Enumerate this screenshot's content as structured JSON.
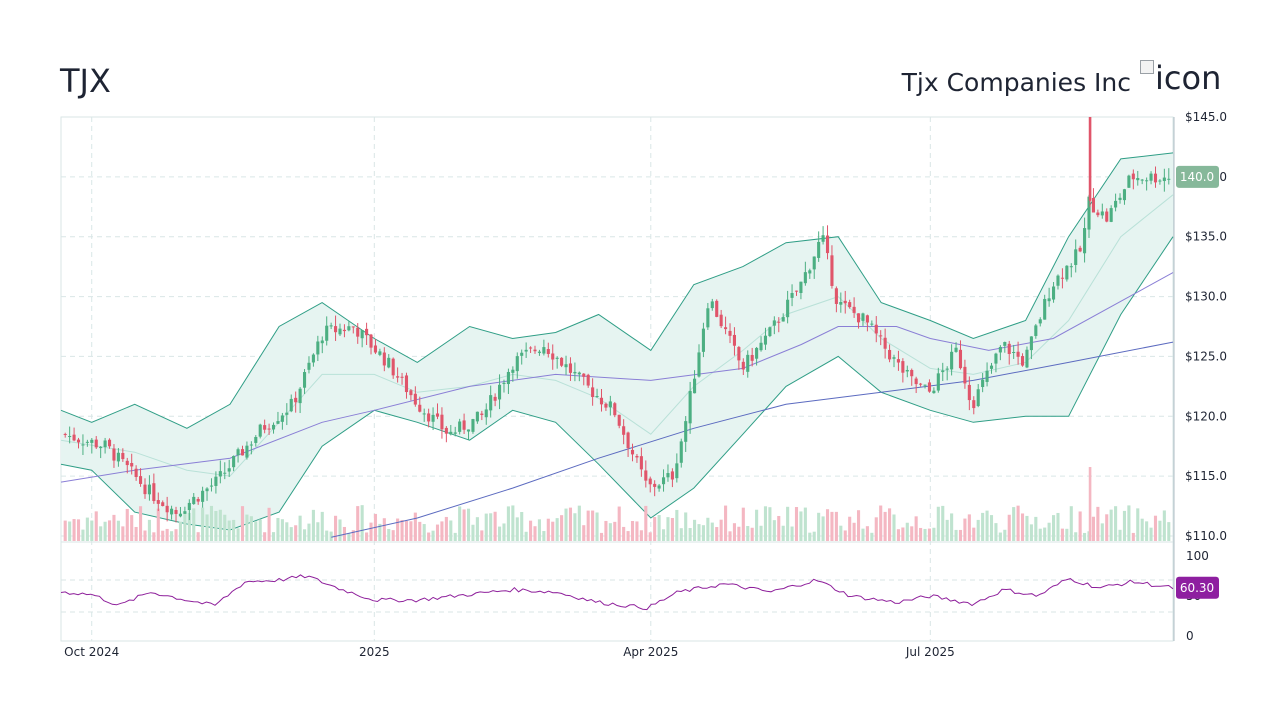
{
  "header": {
    "ticker": "TJX",
    "company": "Tjx Companies Inc",
    "logo_alt": "icon",
    "logo_icon": "broken-image-icon"
  },
  "colors": {
    "up": "#4caf82",
    "down": "#e0556a",
    "up_vol": "#bfe3cf",
    "down_vol": "#f4b7c2",
    "band_fill": "#e6f4f1",
    "band_line": "#2f9e86",
    "sma_mid": "#b9e1d8",
    "sma_200": "#5c6bc0",
    "sma_100": "#8a7fd6",
    "rsi_line": "#8e1f9b",
    "rsi_badge": "#8e1fa0",
    "price_badge": "#86b89a",
    "grid": "#d9e6e6",
    "axis_text": "#1e2433"
  },
  "chart_data": [
    {
      "type": "candlestick",
      "title": "TJX",
      "y_axis_ticks": [
        "$110.0",
        "$115.0",
        "$120.0",
        "$125.0",
        "$130.0",
        "$135.0",
        "$140.0",
        "$145.0"
      ],
      "ylim": [
        110,
        145
      ],
      "x_axis_ticks": [
        "Oct 2024",
        "2025",
        "Apr 2025",
        "Jul 2025"
      ],
      "x_range": [
        "2024-09-21",
        "2025-09-18"
      ],
      "last_price_label": "140.0",
      "grid": true,
      "series": [
        {
          "kind": "close_path",
          "x": [
            "2024-09-21",
            "2024-10-05",
            "2024-10-20",
            "2024-10-28",
            "2024-11-10",
            "2024-11-20",
            "2024-11-25",
            "2024-12-05",
            "2024-12-15",
            "2024-12-25",
            "2025-01-05",
            "2025-01-15",
            "2025-01-25",
            "2025-02-05",
            "2025-02-15",
            "2025-02-25",
            "2025-03-05",
            "2025-03-11",
            "2025-03-20",
            "2025-03-31",
            "2025-04-08",
            "2025-04-12",
            "2025-04-20",
            "2025-05-01",
            "2025-05-10",
            "2025-05-20",
            "2025-05-27",
            "2025-06-01",
            "2025-06-10",
            "2025-06-20",
            "2025-06-25",
            "2025-07-01",
            "2025-07-10",
            "2025-07-15",
            "2025-07-25",
            "2025-08-01",
            "2025-08-10",
            "2025-08-20",
            "2025-08-22",
            "2025-08-28",
            "2025-09-05",
            "2025-09-18"
          ],
          "values": [
            118.5,
            117.5,
            113.5,
            112.0,
            114.5,
            117.5,
            119.0,
            121.0,
            127.0,
            127.5,
            124.5,
            121.0,
            118.5,
            120.0,
            124.5,
            126.0,
            124.0,
            122.5,
            120.5,
            114.0,
            115.0,
            119.0,
            130.0,
            124.0,
            127.0,
            131.0,
            135.0,
            129.5,
            128.0,
            124.5,
            123.0,
            122.0,
            125.5,
            121.0,
            126.0,
            124.5,
            131.0,
            134.0,
            138.0,
            136.5,
            140.0,
            140.0
          ]
        },
        {
          "kind": "bollinger_upper",
          "x": [
            "2024-09-21",
            "2024-10-01",
            "2024-10-15",
            "2024-11-01",
            "2024-11-15",
            "2024-12-01",
            "2024-12-15",
            "2025-01-01",
            "2025-01-15",
            "2025-02-01",
            "2025-02-15",
            "2025-03-01",
            "2025-03-15",
            "2025-04-01",
            "2025-04-15",
            "2025-05-01",
            "2025-05-15",
            "2025-06-01",
            "2025-06-15",
            "2025-07-01",
            "2025-07-15",
            "2025-08-01",
            "2025-08-15",
            "2025-09-01",
            "2025-09-18"
          ],
          "values": [
            120.5,
            119.5,
            121.0,
            119.0,
            121.0,
            127.5,
            129.5,
            126.5,
            124.5,
            127.5,
            126.5,
            127.0,
            128.5,
            125.5,
            131.0,
            132.5,
            134.5,
            135.0,
            129.5,
            128.0,
            126.5,
            128.0,
            135.0,
            141.5,
            142.0
          ]
        },
        {
          "kind": "bollinger_lower",
          "x": [
            "2024-09-21",
            "2024-10-01",
            "2024-10-15",
            "2024-11-01",
            "2024-11-15",
            "2024-12-01",
            "2024-12-15",
            "2025-01-01",
            "2025-01-15",
            "2025-02-01",
            "2025-02-15",
            "2025-03-01",
            "2025-03-15",
            "2025-04-01",
            "2025-04-15",
            "2025-05-01",
            "2025-05-15",
            "2025-06-01",
            "2025-06-15",
            "2025-07-01",
            "2025-07-15",
            "2025-08-01",
            "2025-08-15",
            "2025-09-01",
            "2025-09-18"
          ],
          "values": [
            116.0,
            115.5,
            112.0,
            111.0,
            110.5,
            112.0,
            117.5,
            120.5,
            119.5,
            118.0,
            120.5,
            119.5,
            116.0,
            111.5,
            114.0,
            118.5,
            122.5,
            125.0,
            122.0,
            120.5,
            119.5,
            120.0,
            120.0,
            128.5,
            135.0
          ]
        },
        {
          "kind": "sma_middle",
          "x": [
            "2024-09-21",
            "2024-10-15",
            "2024-11-01",
            "2024-11-15",
            "2024-12-01",
            "2024-12-15",
            "2025-01-01",
            "2025-01-15",
            "2025-02-01",
            "2025-02-15",
            "2025-03-01",
            "2025-03-15",
            "2025-04-01",
            "2025-04-15",
            "2025-05-01",
            "2025-05-15",
            "2025-06-01",
            "2025-06-15",
            "2025-07-01",
            "2025-07-15",
            "2025-08-01",
            "2025-08-15",
            "2025-09-01",
            "2025-09-18"
          ],
          "values": [
            118.0,
            117.0,
            115.5,
            115.0,
            119.5,
            123.5,
            123.5,
            122.0,
            122.5,
            123.5,
            123.0,
            121.5,
            118.5,
            122.5,
            125.5,
            128.5,
            130.0,
            126.5,
            124.0,
            123.5,
            124.5,
            128.0,
            135.0,
            138.5
          ]
        },
        {
          "kind": "sma_100",
          "x": [
            "2024-09-21",
            "2024-10-15",
            "2024-11-15",
            "2024-12-15",
            "2025-01-01",
            "2025-02-01",
            "2025-03-01",
            "2025-04-01",
            "2025-05-01",
            "2025-05-20",
            "2025-06-01",
            "2025-06-20",
            "2025-07-01",
            "2025-07-20",
            "2025-08-10",
            "2025-09-18"
          ],
          "values": [
            114.5,
            115.5,
            116.5,
            119.5,
            120.5,
            122.5,
            123.5,
            123.0,
            124.0,
            126.0,
            127.5,
            127.5,
            126.5,
            125.5,
            126.5,
            132.0
          ]
        },
        {
          "kind": "sma_200",
          "x": [
            "2024-12-18",
            "2025-01-15",
            "2025-02-15",
            "2025-03-15",
            "2025-04-15",
            "2025-05-15",
            "2025-06-15",
            "2025-07-15",
            "2025-08-15",
            "2025-09-18"
          ],
          "values": [
            109.9,
            111.5,
            114.0,
            116.5,
            119.0,
            121.0,
            122.0,
            123.0,
            124.5,
            126.2
          ]
        }
      ]
    },
    {
      "type": "line",
      "title": "",
      "y_axis_ticks": [
        "0",
        "50",
        "100"
      ],
      "ylim": [
        0,
        100
      ],
      "last_value_label": "60.30",
      "x": [
        "2024-09-21",
        "2024-10-01",
        "2024-10-10",
        "2024-10-20",
        "2024-11-01",
        "2024-11-10",
        "2024-11-20",
        "2024-12-01",
        "2024-12-10",
        "2024-12-20",
        "2025-01-01",
        "2025-01-15",
        "2025-02-01",
        "2025-02-15",
        "2025-03-01",
        "2025-03-15",
        "2025-03-31",
        "2025-04-10",
        "2025-04-25",
        "2025-05-10",
        "2025-05-25",
        "2025-06-05",
        "2025-06-20",
        "2025-07-01",
        "2025-07-15",
        "2025-07-25",
        "2025-08-05",
        "2025-08-15",
        "2025-08-25",
        "2025-09-05",
        "2025-09-18"
      ],
      "values": [
        55,
        52,
        38,
        55,
        45,
        38,
        68,
        70,
        75,
        60,
        45,
        45,
        52,
        58,
        55,
        42,
        35,
        55,
        65,
        55,
        70,
        50,
        42,
        50,
        40,
        58,
        50,
        72,
        60,
        68,
        60
      ]
    }
  ]
}
